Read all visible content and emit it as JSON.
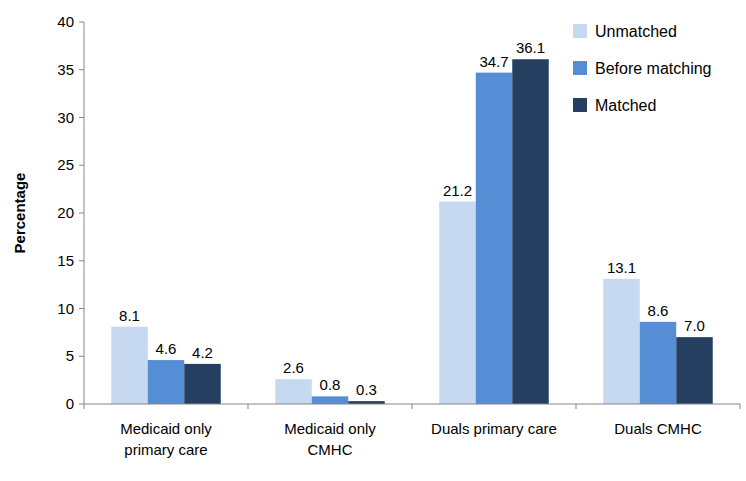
{
  "chart_data": {
    "type": "bar",
    "y_label": "Percentage",
    "categories": [
      "Medicaid only primary care",
      "Medicaid only CMHC",
      "Duals primary care",
      "Duals CMHC"
    ],
    "series": [
      {
        "name": "Unmatched",
        "color": "#c6d9f1",
        "values": [
          8.1,
          2.6,
          21.2,
          13.1
        ],
        "value_labels": [
          "8.1",
          "2.6",
          "21.2",
          "13.1"
        ]
      },
      {
        "name": "Before matching",
        "color": "#558ed5",
        "values": [
          4.6,
          0.8,
          34.7,
          8.6
        ],
        "value_labels": [
          "4.6",
          "0.8",
          "34.7",
          "8.6"
        ]
      },
      {
        "name": "Matched",
        "color": "#243f60",
        "values": [
          4.2,
          0.3,
          36.1,
          7.0
        ],
        "value_labels": [
          "4.2",
          "0.3",
          "36.1",
          "7.0"
        ]
      }
    ],
    "ylim": [
      0,
      40
    ],
    "yticks": [
      0,
      5,
      10,
      15,
      20,
      25,
      30,
      35,
      40
    ],
    "grid": false,
    "legend": "top-right",
    "data_labels": true
  }
}
